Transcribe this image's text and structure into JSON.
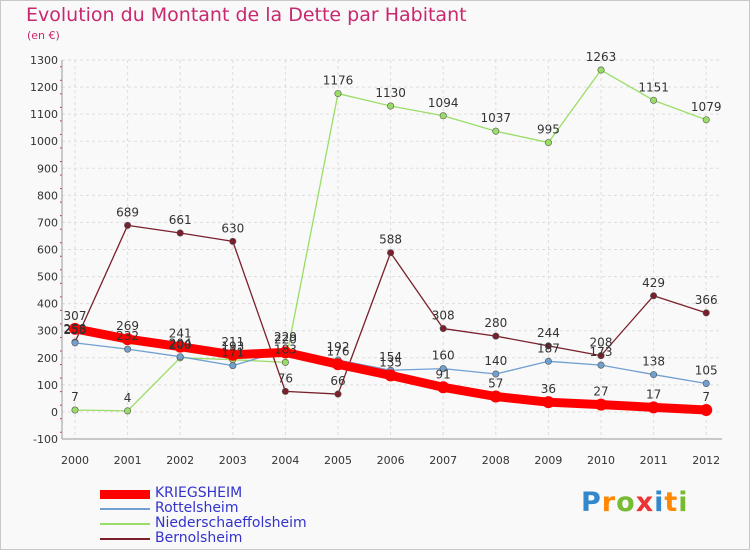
{
  "header": {
    "title": "Evolution du Montant de la Dette par Habitant",
    "subtitle": "(en €)"
  },
  "logo": {
    "text": "Proxiti"
  },
  "chart_data": {
    "type": "line",
    "title": "Evolution du Montant de la Dette par Habitant",
    "subtitle": "(en €)",
    "xlabel": "",
    "ylabel": "",
    "x": [
      "2000",
      "2001",
      "2002",
      "2003",
      "2004",
      "2005",
      "2006",
      "2007",
      "2008",
      "2009",
      "2010",
      "2011",
      "2012"
    ],
    "ylim": [
      -100,
      1300
    ],
    "yticks": [
      -100,
      0,
      100,
      200,
      300,
      400,
      500,
      600,
      700,
      800,
      900,
      1000,
      1100,
      1200,
      1300
    ],
    "grid": true,
    "legend_position": "bottom-left",
    "series": [
      {
        "name": "KRIEGSHEIM",
        "color": "#ff0000",
        "values": [
          307,
          269,
          241,
          211,
          220,
          176,
          135,
          91,
          57,
          36,
          27,
          17,
          7
        ]
      },
      {
        "name": "Rottelsheim",
        "color": "#6fa0d0",
        "values": [
          255,
          232,
          204,
          171,
          229,
          192,
          154,
          160,
          140,
          187,
          173,
          138,
          105
        ]
      },
      {
        "name": "Niederschaeffolsheim",
        "color": "#99dd66",
        "values": [
          7,
          4,
          200,
          193,
          183,
          1176,
          1130,
          1094,
          1037,
          995,
          1263,
          1151,
          1079
        ]
      },
      {
        "name": "Bernolsheim",
        "color": "#7a1f2b",
        "values": [
          258,
          689,
          661,
          630,
          76,
          66,
          588,
          308,
          280,
          244,
          208,
          429,
          366
        ]
      }
    ]
  }
}
